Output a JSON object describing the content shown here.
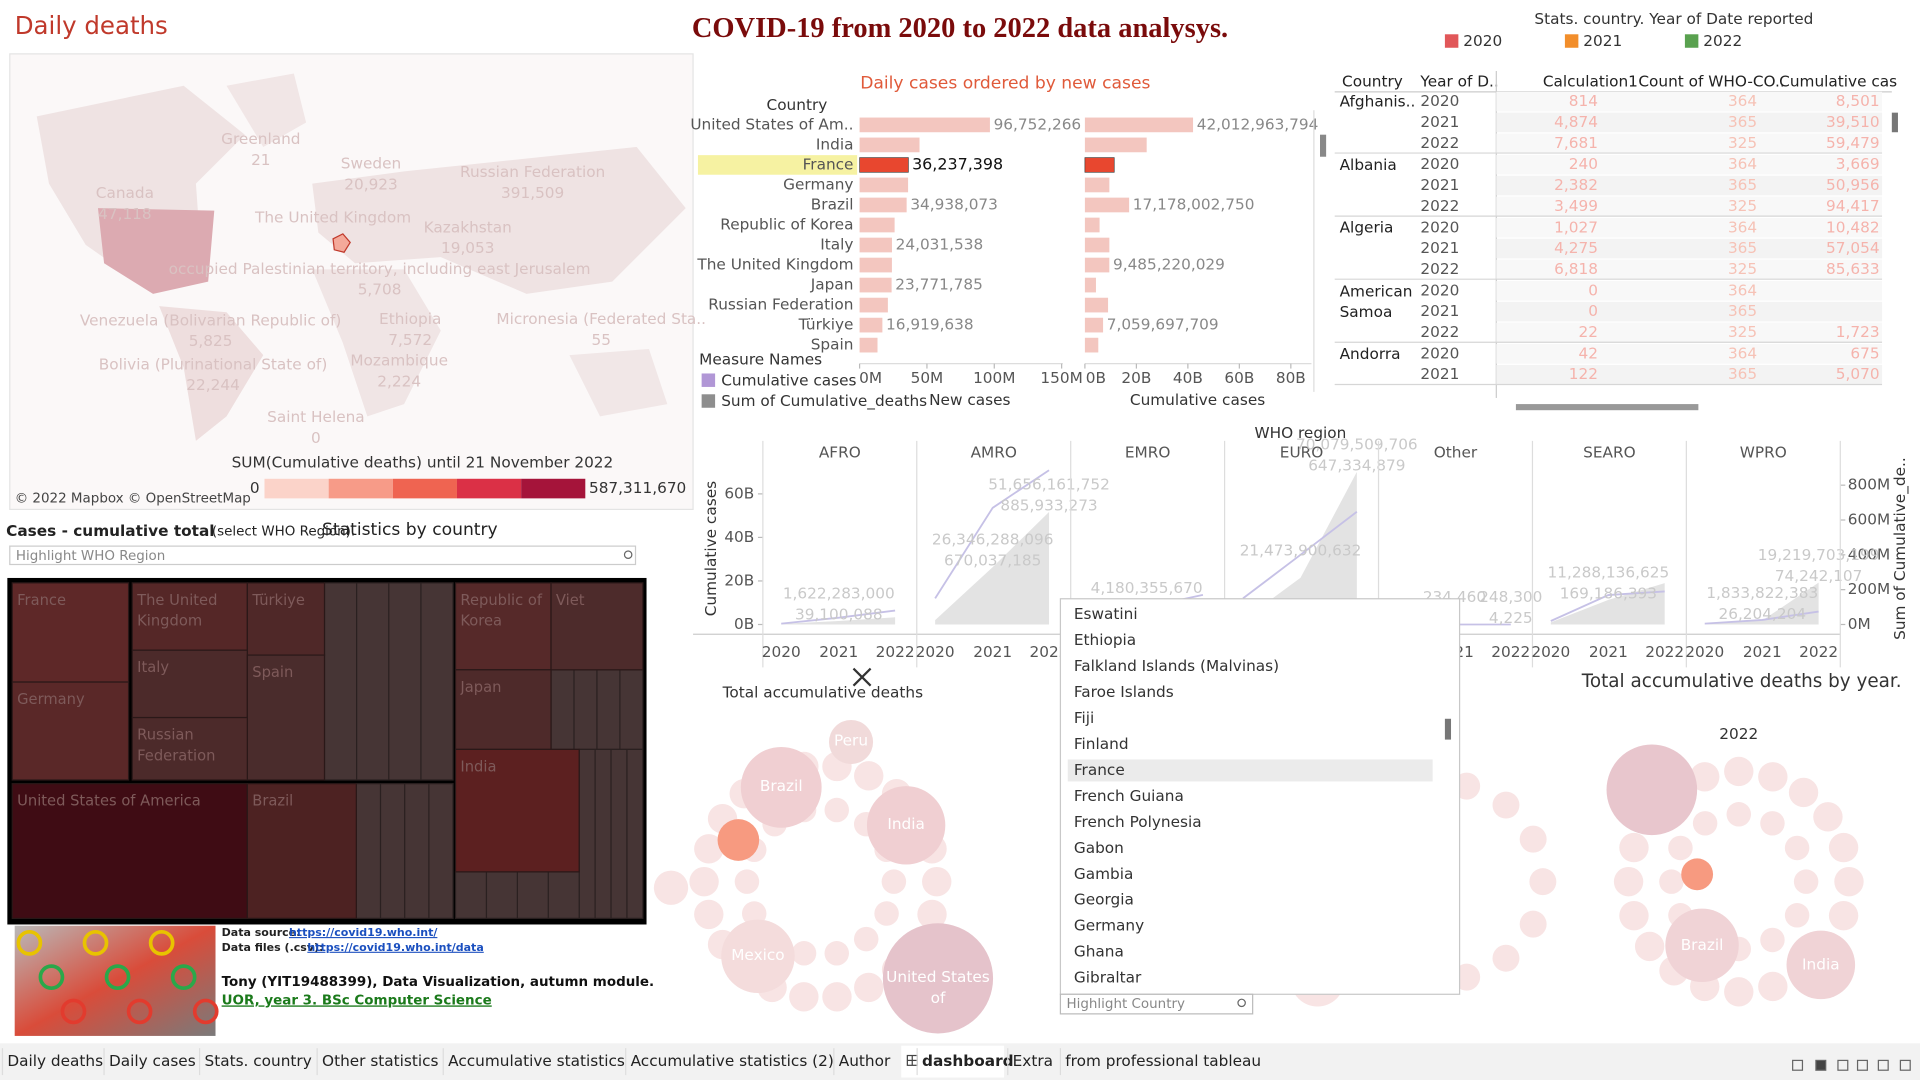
{
  "header": {
    "title": "COVID-19 from 2020 to 2022 data analysys."
  },
  "map": {
    "title": "Daily deaths",
    "labels": [
      {
        "name": "Greenland",
        "value": "21"
      },
      {
        "name": "Sweden",
        "value": "20,923"
      },
      {
        "name": "Russian Federation",
        "value": "391,509"
      },
      {
        "name": "Canada",
        "value": "47,118"
      },
      {
        "name": "The United Kingdom"
      },
      {
        "name": "Kazakhstan",
        "value": "19,053"
      },
      {
        "name": "occupied Palestinian territory, including east Jerusalem",
        "value": "5,708"
      },
      {
        "name": "Venezuela (Bolivarian Republic of)",
        "value": "5,825"
      },
      {
        "name": "Ethiopia",
        "value": "7,572"
      },
      {
        "name": "Micronesia (Federated Sta..",
        "value": "55"
      },
      {
        "name": "Bolivia (Plurinational State of)",
        "value": "22,244"
      },
      {
        "name": "Mozambique",
        "value": "2,224"
      },
      {
        "name": "Saint Helena",
        "value": "0"
      }
    ],
    "legend_title": "SUM(Cumulative deaths) until 21 November 2022",
    "legend_min": "0",
    "legend_max": "587,311,670",
    "legend_colors": [
      "#fbd3c9",
      "#f79b88",
      "#ef6451",
      "#db3046",
      "#a5143a"
    ],
    "credit": "© 2022 Mapbox © OpenStreetMap"
  },
  "treemap": {
    "title": "Cases - cumulative total",
    "hint": "(select WHO Region).",
    "subtitle": "Statistics by country",
    "search_placeholder": "Highlight WHO Region",
    "labels": [
      "France",
      "The United Kingdom",
      "Türkiye",
      "Germany",
      "Italy",
      "Spain",
      "Russian Federation",
      "Republic of Korea",
      "Viet",
      "Japan",
      "India",
      "United States of America",
      "Brazil"
    ]
  },
  "credits": {
    "source_label": "Data source:",
    "source_url": "https://covid19.who.int/",
    "files_label": "Data files (.csv):",
    "files_url": "https://covid19.who.int/data",
    "author": "Tony (YIT19488399), Data Visualization, autumn module.",
    "course": "UOR, year 3. BSc Computer Science"
  },
  "daily_cases": {
    "type": "bar",
    "title": "Daily cases ordered by new cases",
    "row_header": "Country",
    "categories": [
      "United States of Am..",
      "India",
      "France",
      "Germany",
      "Brazil",
      "Republic of Korea",
      "Italy",
      "The United Kingdom",
      "Japan",
      "Russian Federation",
      "Türkiye",
      "Spain"
    ],
    "highlight": 2,
    "bar_color": "#f3c6bf",
    "highlight_color": "#e8472f",
    "new_cases": {
      "name": "New cases",
      "values": [
        96752266,
        44500000,
        36237398,
        36000000,
        34938073,
        26000000,
        24031538,
        24000000,
        23771785,
        21000000,
        16919638,
        13300000
      ],
      "value_labels": [
        "96,752,266",
        null,
        "36,237,398",
        null,
        "34,938,073",
        null,
        "24,031,538",
        null,
        "23,771,785",
        null,
        "16,919,638",
        null
      ],
      "xlim": [
        0,
        150000000
      ],
      "xticks": [
        {
          "value": 0,
          "label": "0M"
        },
        {
          "value": 50000000,
          "label": "50M"
        },
        {
          "value": 100000000,
          "label": "100M"
        },
        {
          "value": 150000000,
          "label": "150M"
        }
      ]
    },
    "cumulative_cases": {
      "name": "Cumulative cases",
      "values": [
        42012963794,
        24000000000,
        11400000000,
        9500000000,
        17178002750,
        5700000000,
        9500000000,
        9485220029,
        4300000000,
        9000000000,
        7059697709,
        5200000000
      ],
      "value_labels": [
        "42,012,963,794",
        null,
        null,
        null,
        "17,178,002,750",
        null,
        null,
        "9,485,220,029",
        null,
        null,
        "7,059,697,709",
        null
      ],
      "xlim": [
        0,
        88000000000
      ],
      "xticks": [
        {
          "value": 0,
          "label": "0B"
        },
        {
          "value": 20000000000,
          "label": "20B"
        },
        {
          "value": 40000000000,
          "label": "40B"
        },
        {
          "value": 60000000000,
          "label": "60B"
        },
        {
          "value": 80000000000,
          "label": "80B"
        }
      ]
    },
    "legend_title": "Measure Names",
    "legend": [
      {
        "name": "Cumulative cases",
        "color": "#b197d6"
      },
      {
        "name": "Sum of Cumulative_deaths",
        "color": "#8e8e8e"
      }
    ]
  },
  "region_chart": {
    "type": "area",
    "title": "WHO region",
    "years": [
      "2020",
      "2021",
      "2022"
    ],
    "ylabel": "Cumulative cases",
    "y2label": "Sum of Cumulative_de..",
    "ylim": [
      0,
      72000000000
    ],
    "yticks": [
      {
        "value": 0,
        "label": "0B"
      },
      {
        "value": 20000000000,
        "label": "20B"
      },
      {
        "value": 40000000000,
        "label": "40B"
      },
      {
        "value": 60000000000,
        "label": "60B"
      }
    ],
    "y2lim": [
      0,
      900000000
    ],
    "y2ticks": [
      {
        "value": 0,
        "label": "0M"
      },
      {
        "value": 200000000,
        "label": "200M"
      },
      {
        "value": 400000000,
        "label": "400M"
      },
      {
        "value": 600000000,
        "label": "600M"
      },
      {
        "value": 800000000,
        "label": "800M"
      }
    ],
    "area_color": "#e3e3e3",
    "line_color": "#c6c1e6",
    "regions": [
      {
        "name": "AFRO",
        "cases": [
          300000000,
          1622283000,
          3300000000
        ],
        "cases_labels": [
          null,
          "1,622,283,000",
          null
        ],
        "deaths": [
          5000000,
          39100088,
          80000000
        ],
        "deaths_labels": [
          null,
          "39,100,088",
          null
        ]
      },
      {
        "name": "AMRO",
        "cases": [
          2000000000,
          26346288096,
          51656161752
        ],
        "cases_labels": [
          null,
          "26,346,288,096",
          "51,656,161,752"
        ],
        "deaths": [
          150000000,
          670037185,
          885933273
        ],
        "deaths_labels": [
          null,
          "670,037,185",
          "885,933,273"
        ]
      },
      {
        "name": "EMRO",
        "cases": [
          800000000,
          4180355670,
          7000000000
        ],
        "cases_labels": [
          null,
          "4,180,355,670",
          null
        ],
        "deaths": [
          20000000,
          100000000,
          170000000
        ],
        "deaths_labels": [
          null,
          null,
          null
        ]
      },
      {
        "name": "EURO",
        "cases": [
          2000000000,
          21473900632,
          70079509706
        ],
        "cases_labels": [
          null,
          "21,473,900,632",
          "70,079,509,706"
        ],
        "deaths": [
          150000000,
          400000000,
          647334879
        ],
        "deaths_labels": [
          null,
          null,
          "647,334,879"
        ]
      },
      {
        "name": "Other",
        "cases": [
          200000,
          234460,
          248300
        ],
        "cases_labels": [
          null,
          "234,460",
          "248,300"
        ],
        "deaths": [
          3000,
          4225,
          4225
        ],
        "deaths_labels": [
          null,
          null,
          "4,225"
        ]
      },
      {
        "name": "SEARO",
        "cases": [
          1000000000,
          11288136625,
          19000000000
        ],
        "cases_labels": [
          null,
          "11,288,136,625",
          null
        ],
        "deaths": [
          20000000,
          169186393,
          190000000
        ],
        "deaths_labels": [
          null,
          "169,186,393",
          null
        ]
      },
      {
        "name": "WPRO",
        "cases": [
          100000000,
          1833822383,
          19219703199
        ],
        "cases_labels": [
          null,
          "1,833,822,383",
          "19,219,703,199"
        ],
        "deaths": [
          5000000,
          26204204,
          74242107
        ],
        "deaths_labels": [
          null,
          "26,204,204",
          "74,242,107"
        ]
      }
    ]
  },
  "bubbles": {
    "title": "Total accumulative deaths",
    "title_right": "Total accumulative deaths by year.",
    "year_label": "2022",
    "left_labels": [
      "Peru",
      "Brazil",
      "India",
      "Mexico",
      "United States of"
    ],
    "right_labels": [
      "Brazil",
      "India"
    ]
  },
  "stats_table": {
    "legend_title": "Stats. country. Year of Date reported",
    "legend": [
      {
        "label": "2020",
        "color": "#e15759"
      },
      {
        "label": "2021",
        "color": "#f28e2b"
      },
      {
        "label": "2022",
        "color": "#59a14f"
      }
    ],
    "columns": [
      "Country",
      "Year of D..",
      "Calculation1",
      "Count of WHO-CO..",
      "Cumulative cas"
    ],
    "groups": [
      {
        "country": "Afghanis..",
        "rows": [
          [
            "2020",
            "814",
            "364",
            "8,501"
          ],
          [
            "2021",
            "4,874",
            "365",
            "39,510"
          ],
          [
            "2022",
            "7,681",
            "325",
            "59,479"
          ]
        ]
      },
      {
        "country": "Albania",
        "rows": [
          [
            "2020",
            "240",
            "364",
            "3,669"
          ],
          [
            "2021",
            "2,382",
            "365",
            "50,956"
          ],
          [
            "2022",
            "3,499",
            "325",
            "94,417"
          ]
        ]
      },
      {
        "country": "Algeria",
        "rows": [
          [
            "2020",
            "1,027",
            "364",
            "10,482"
          ],
          [
            "2021",
            "4,275",
            "365",
            "57,054"
          ],
          [
            "2022",
            "6,818",
            "325",
            "85,633"
          ]
        ]
      },
      {
        "country": "American Samoa",
        "rows": [
          [
            "2020",
            "0",
            "364",
            null
          ],
          [
            "2021",
            "0",
            "365",
            null
          ],
          [
            "2022",
            "22",
            "325",
            "1,723"
          ]
        ]
      },
      {
        "country": "Andorra",
        "rows": [
          [
            "2020",
            "42",
            "364",
            "675"
          ],
          [
            "2021",
            "122",
            "365",
            "5,070"
          ]
        ]
      }
    ]
  },
  "country_filter": {
    "items": [
      "Eswatini",
      "Ethiopia",
      "Falkland Islands (Malvinas)",
      "Faroe Islands",
      "Fiji",
      "Finland",
      "France",
      "French Guiana",
      "French Polynesia",
      "Gabon",
      "Gambia",
      "Georgia",
      "Germany",
      "Ghana",
      "Gibraltar"
    ],
    "selected": 6,
    "placeholder": "Highlight Country"
  },
  "tabs": {
    "items": [
      "Daily deaths",
      "Daily cases",
      "Stats. country",
      "Other statistics",
      "Accumulative statistics",
      "Accumulative statistics (2)",
      "Author",
      "dashboard",
      "Extra",
      "from professional tableau"
    ],
    "active": 7
  }
}
